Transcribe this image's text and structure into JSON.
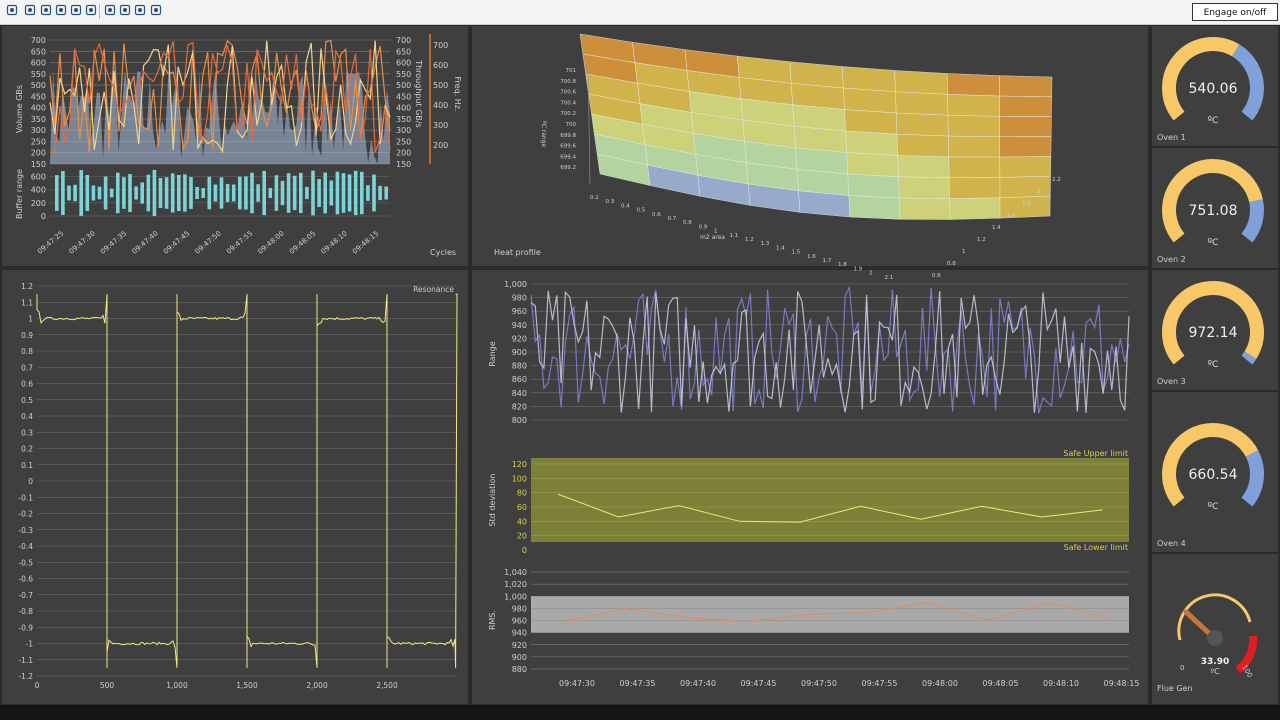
{
  "toolbar": {
    "buttons": [
      "pointer-icon",
      "refresh-icon",
      "move-icon",
      "zoom-icon",
      "screenshot-icon",
      "grid-icon",
      "settings-icon",
      "minus-icon",
      "copy-icon",
      "export-icon"
    ],
    "engage_label": "Engage on/off"
  },
  "colors": {
    "panel": "#3f3f3f",
    "yellow": "#f3ea7c",
    "gauge": "#f7c768",
    "gauge_blue": "#7fa0d8",
    "red": "#e02020"
  },
  "chart_data": [
    {
      "id": "throughput",
      "type": "area",
      "ylabel": "Volume GBs",
      "ylabel2": "Throughput GB/s",
      "ylabel3": "Freq. Hz.",
      "yticks": [
        "700",
        "650",
        "600",
        "550",
        "500",
        "450",
        "400",
        "350",
        "300",
        "250",
        "200",
        "150"
      ],
      "yticks2": [
        "700",
        "650",
        "600",
        "550",
        "500",
        "450",
        "400",
        "350",
        "300",
        "250",
        "200",
        "150"
      ],
      "yticks3": [
        "700",
        "600",
        "500",
        "400",
        "300",
        "200"
      ],
      "ylim": [
        150,
        700
      ],
      "xticks": [
        "09:47:25",
        "09:47:30",
        "09:47:35",
        "09:47:40",
        "09:47:45",
        "09:47:50",
        "09:47:55",
        "09:48:00",
        "09:48:05",
        "09:48:10",
        "09:48:15"
      ],
      "xlabel": "Cycles"
    },
    {
      "id": "buffer",
      "type": "bar",
      "ylabel": "Buffer range",
      "yticks": [
        "600",
        "400",
        "200",
        "0"
      ],
      "ylim": [
        0,
        700
      ]
    },
    {
      "id": "heat",
      "type": "surface",
      "label": "Heat profile",
      "zlabel": "ºC range",
      "xlabel": "m2 area",
      "zticks": [
        "701",
        "700.8",
        "700.6",
        "700.4",
        "700.2",
        "700",
        "699.8",
        "699.6",
        "699.4",
        "699.2"
      ],
      "xticks": [
        "0.2",
        "0.3",
        "0.4",
        "0.5",
        "0.6",
        "0.7",
        "0.8",
        "0.9",
        "1",
        "1.1",
        "1.2",
        "1.3",
        "1.4",
        "1.5",
        "1.6",
        "1.7",
        "1.8",
        "1.9",
        "2",
        "2.1"
      ],
      "yticks": [
        "2.2",
        "2",
        "1.8",
        "1.6",
        "1.4",
        "1.2",
        "1",
        "0.8",
        "0.6"
      ]
    },
    {
      "id": "resonance",
      "type": "line",
      "label": "Resonance",
      "yticks": [
        "1.2",
        "1.1",
        "1",
        "0.9",
        "0.8",
        "0.7",
        "0.6",
        "0.5",
        "0.4",
        "0.3",
        "0.2",
        "0.1",
        "0",
        "-0.1",
        "-0.2",
        "-0.3",
        "-0.4",
        "-0.5",
        "-0.6",
        "-0.7",
        "-0.8",
        "-0.9",
        "-1",
        "-1.1",
        "-1.2"
      ],
      "ylim": [
        -1.2,
        1.2
      ],
      "xticks": [
        "0",
        "500",
        "1,000",
        "1,500",
        "2,000",
        "2,500"
      ],
      "xlim": [
        0,
        3000
      ]
    },
    {
      "id": "range",
      "type": "area",
      "ylabel": "Range",
      "yticks": [
        "1,000",
        "980",
        "960",
        "940",
        "920",
        "900",
        "880",
        "860",
        "840",
        "820",
        "800"
      ],
      "ylim": [
        800,
        1000
      ]
    },
    {
      "id": "stddev",
      "type": "line",
      "ylabel": "Std deviation",
      "yticks": [
        "120",
        "100",
        "80",
        "60",
        "40",
        "20",
        "0"
      ],
      "ylim": [
        0,
        120
      ],
      "upper_label": "Safe Upper limit",
      "lower_label": "Safe Lower limit",
      "values": [
        78,
        46,
        62,
        40,
        39,
        61,
        43,
        61,
        46,
        56
      ]
    },
    {
      "id": "rms",
      "type": "line",
      "ylabel": "RMS.",
      "yticks": [
        "1,040",
        "1,020",
        "1,000",
        "980",
        "960",
        "940",
        "920",
        "900",
        "880"
      ],
      "ylim": [
        880,
        1040
      ],
      "values": [
        958,
        980,
        965,
        958,
        970,
        973,
        990,
        960,
        990,
        962
      ],
      "xticks": [
        "09:47:30",
        "09:47:35",
        "09:47:40",
        "09:47:45",
        "09:47:50",
        "09:47:55",
        "09:48:00",
        "09:48:05",
        "09:48:10",
        "09:48:15"
      ]
    }
  ],
  "gauges": [
    {
      "value": "540.06",
      "unit": "ºC",
      "name": "Oven 1"
    },
    {
      "value": "751.08",
      "unit": "ºC",
      "name": "Oven 2"
    },
    {
      "value": "972.14",
      "unit": "ºC",
      "name": "Oven 3"
    },
    {
      "value": "660.54",
      "unit": "ºC",
      "name": "Oven 4"
    }
  ],
  "flue": {
    "value": "33.90",
    "unit": "ºC",
    "name": "Flue Gen",
    "min_label": "0",
    "max_label": "100"
  }
}
